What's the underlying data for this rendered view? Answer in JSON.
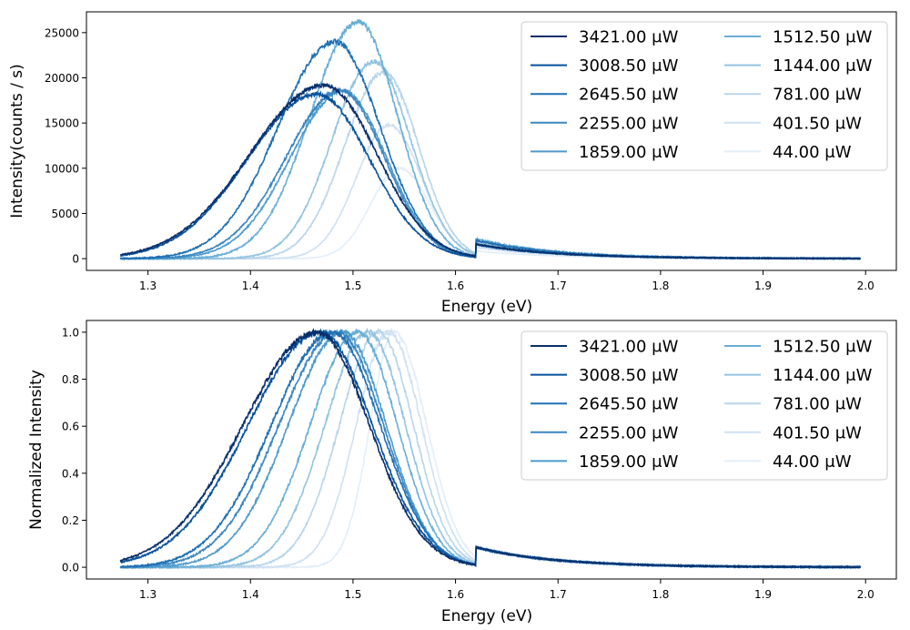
{
  "chart_data": [
    {
      "type": "line",
      "xlabel": "Energy (eV)",
      "ylabel": "Intensity(counts / s)",
      "xlim": [
        1.24,
        2.03
      ],
      "ylim": [
        -1300,
        27300
      ],
      "xticks": [
        1.3,
        1.4,
        1.5,
        1.6,
        1.7,
        1.8,
        1.9,
        2.0
      ],
      "xtick_labels": [
        "1.3",
        "1.4",
        "1.5",
        "1.6",
        "1.7",
        "1.8",
        "1.9",
        "2.0"
      ],
      "yticks": [
        0,
        5000,
        10000,
        15000,
        20000,
        25000
      ],
      "ytick_labels": [
        "0",
        "5000",
        "10000",
        "15000",
        "20000",
        "25000"
      ],
      "x_range": [
        1.273,
        1.995
      ],
      "legend": {
        "placement": "upper right",
        "columns": 2
      },
      "series": [
        {
          "name": "3421.00 μW",
          "color": "#08306b",
          "peak_energy": 1.472,
          "peak": 19200,
          "fwhm_low": 0.17,
          "fwhm_high": 0.12
        },
        {
          "name": "3008.50 μW",
          "color": "#08529c",
          "peak_energy": 1.465,
          "peak": 18200,
          "fwhm_low": 0.16,
          "fwhm_high": 0.12
        },
        {
          "name": "2645.50 μW",
          "color": "#2070b4",
          "peak_energy": 1.482,
          "peak": 24000,
          "fwhm_low": 0.13,
          "fwhm_high": 0.105
        },
        {
          "name": "2255.00 μW",
          "color": "#3a87c0",
          "peak_energy": 1.488,
          "peak": 18600,
          "fwhm_low": 0.125,
          "fwhm_high": 0.1
        },
        {
          "name": "1859.00 μW",
          "color": "#4f9acb",
          "peak_energy": 1.49,
          "peak": 18500,
          "fwhm_low": 0.12,
          "fwhm_high": 0.1
        },
        {
          "name": "1512.50 μW",
          "color": "#6aaed6",
          "peak_energy": 1.505,
          "peak": 26200,
          "fwhm_low": 0.11,
          "fwhm_high": 0.09
        },
        {
          "name": "1144.00 μW",
          "color": "#94c4df",
          "peak_energy": 1.52,
          "peak": 21800,
          "fwhm_low": 0.095,
          "fwhm_high": 0.085
        },
        {
          "name": "781.00 μW",
          "color": "#b8d5ea",
          "peak_energy": 1.53,
          "peak": 20600,
          "fwhm_low": 0.09,
          "fwhm_high": 0.08
        },
        {
          "name": "401.50 μW",
          "color": "#d0e1f2",
          "peak_energy": 1.535,
          "peak": 14800,
          "fwhm_low": 0.075,
          "fwhm_high": 0.075
        },
        {
          "name": "44.00 μW",
          "color": "#e3eef9",
          "peak_energy": 1.545,
          "peak": 10000,
          "fwhm_low": 0.065,
          "fwhm_high": 0.07
        }
      ]
    },
    {
      "type": "line",
      "xlabel": "Energy (eV)",
      "ylabel": "Normalized Intensity",
      "xlim": [
        1.24,
        2.03
      ],
      "ylim": [
        -0.05,
        1.05
      ],
      "xticks": [
        1.3,
        1.4,
        1.5,
        1.6,
        1.7,
        1.8,
        1.9,
        2.0
      ],
      "xtick_labels": [
        "1.3",
        "1.4",
        "1.5",
        "1.6",
        "1.7",
        "1.8",
        "1.9",
        "2.0"
      ],
      "yticks": [
        0.0,
        0.2,
        0.4,
        0.6,
        0.8,
        1.0
      ],
      "ytick_labels": [
        "0.0",
        "0.2",
        "0.4",
        "0.6",
        "0.8",
        "1.0"
      ],
      "x_range": [
        1.273,
        1.995
      ],
      "legend": {
        "placement": "upper right",
        "columns": 2
      },
      "series": [
        {
          "name": "3421.00 μW",
          "color": "#08306b",
          "peak_energy": 1.465,
          "peak": 1.0,
          "fwhm_low": 0.17,
          "fwhm_high": 0.12
        },
        {
          "name": "3008.50 μW",
          "color": "#08529c",
          "peak_energy": 1.468,
          "peak": 1.0,
          "fwhm_low": 0.165,
          "fwhm_high": 0.12
        },
        {
          "name": "2645.50 μW",
          "color": "#2070b4",
          "peak_energy": 1.48,
          "peak": 1.0,
          "fwhm_low": 0.14,
          "fwhm_high": 0.11
        },
        {
          "name": "2255.00 μW",
          "color": "#3a87c0",
          "peak_energy": 1.485,
          "peak": 1.0,
          "fwhm_low": 0.135,
          "fwhm_high": 0.105
        },
        {
          "name": "1859.00 μW",
          "color": "#4f9acb",
          "peak_energy": 1.49,
          "peak": 1.0,
          "fwhm_low": 0.125,
          "fwhm_high": 0.1
        },
        {
          "name": "1512.50 μW",
          "color": "#6aaed6",
          "peak_energy": 1.505,
          "peak": 1.0,
          "fwhm_low": 0.11,
          "fwhm_high": 0.09
        },
        {
          "name": "1144.00 μW",
          "color": "#94c4df",
          "peak_energy": 1.515,
          "peak": 1.0,
          "fwhm_low": 0.1,
          "fwhm_high": 0.085
        },
        {
          "name": "781.00 μW",
          "color": "#b8d5ea",
          "peak_energy": 1.525,
          "peak": 1.0,
          "fwhm_low": 0.09,
          "fwhm_high": 0.08
        },
        {
          "name": "401.50 μW",
          "color": "#d0e1f2",
          "peak_energy": 1.535,
          "peak": 1.0,
          "fwhm_low": 0.075,
          "fwhm_high": 0.075
        },
        {
          "name": "44.00 μW",
          "color": "#e3eef9",
          "peak_energy": 1.54,
          "peak": 1.0,
          "fwhm_low": 0.055,
          "fwhm_high": 0.075
        }
      ]
    }
  ]
}
